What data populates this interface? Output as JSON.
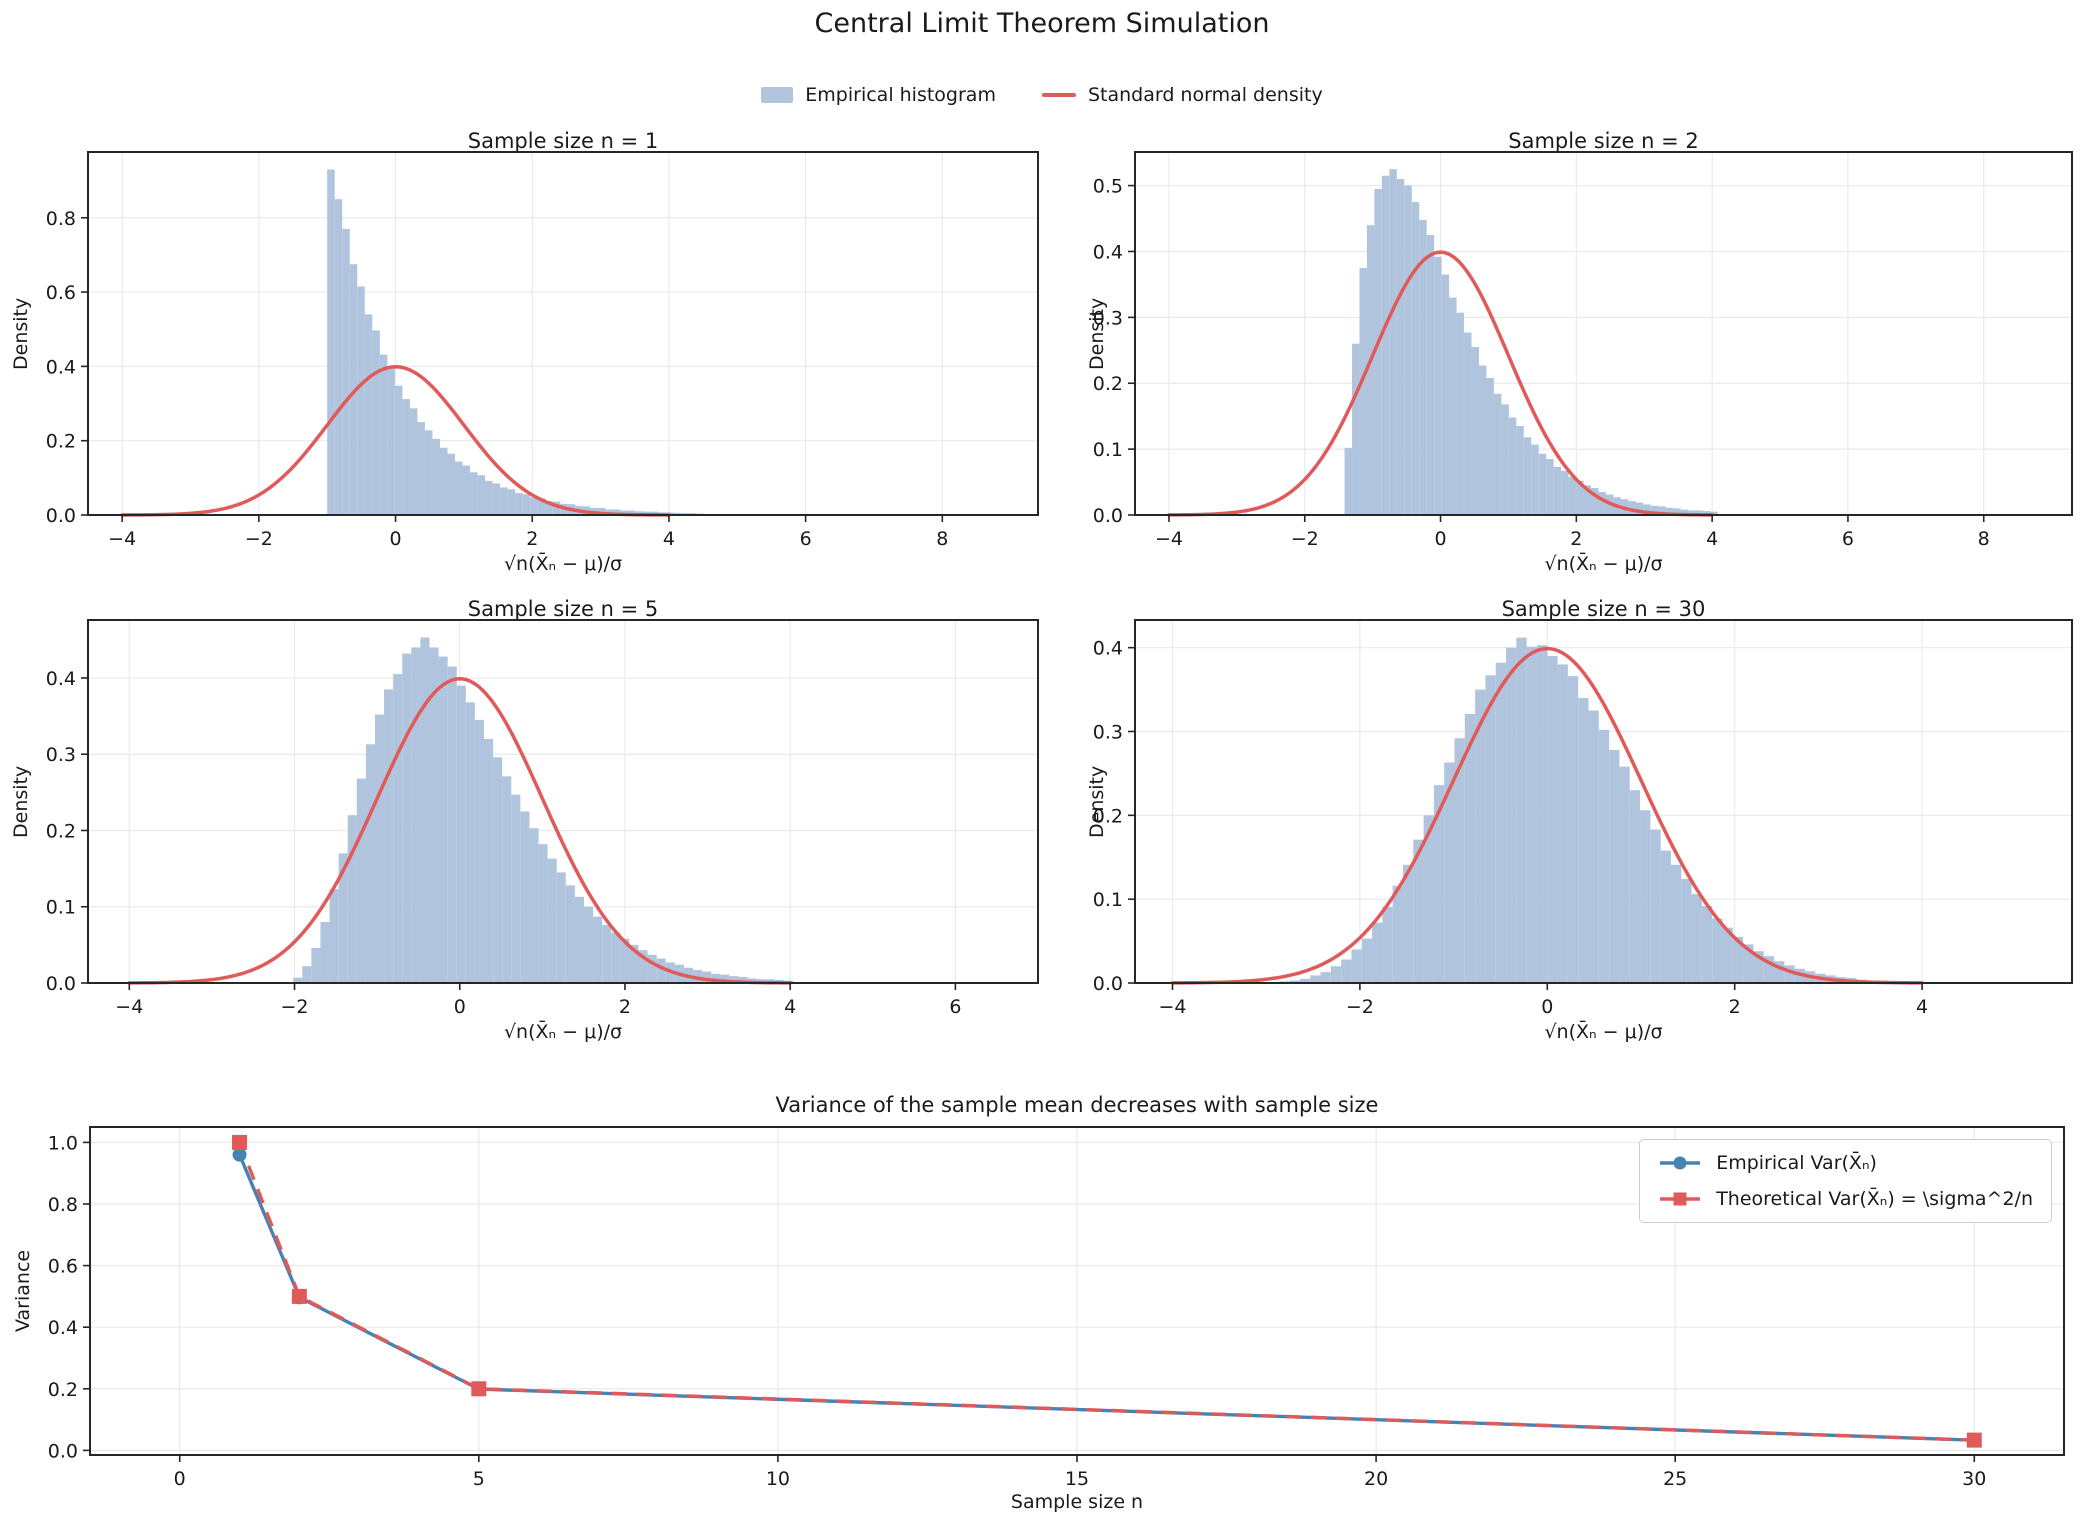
{
  "figure": {
    "title": "Central Limit Theorem Simulation",
    "legend": [
      {
        "label": "Empirical histogram",
        "swatch": "hist-patch"
      },
      {
        "label": "Standard normal density",
        "swatch": "curve-line"
      }
    ]
  },
  "colors": {
    "hist_fill": "#B0C4DE",
    "normal_curve": "#E05A5A",
    "empirical_line": "#4682B4",
    "theoretical_line": "#E05A5A",
    "grid": "#EAEAEA",
    "spine": "#262626",
    "text": "#1A1A1A"
  },
  "chart_data": [
    {
      "type": "histogram",
      "title": "Sample size n = 1",
      "xlabel": "√n(X̄ₙ − μ)/σ",
      "ylabel": "Density",
      "xlim": [
        -4.5,
        9.4
      ],
      "ylim": [
        0,
        0.977
      ],
      "xticks": [
        -4,
        -2,
        0,
        2,
        4,
        6,
        8
      ],
      "yticks": [
        0.0,
        0.2,
        0.4,
        0.6,
        0.8
      ],
      "xtick_decimals": 0,
      "ytick_decimals": 1,
      "hist": {
        "start": -1.0,
        "bin_width": 0.11,
        "heights": [
          0.93,
          0.85,
          0.77,
          0.675,
          0.615,
          0.54,
          0.497,
          0.432,
          0.398,
          0.348,
          0.312,
          0.287,
          0.25,
          0.228,
          0.205,
          0.181,
          0.165,
          0.144,
          0.133,
          0.115,
          0.107,
          0.092,
          0.085,
          0.074,
          0.069,
          0.059,
          0.056,
          0.047,
          0.045,
          0.038,
          0.036,
          0.03,
          0.029,
          0.024,
          0.023,
          0.019,
          0.019,
          0.015,
          0.015,
          0.012,
          0.012,
          0.01,
          0.009,
          0.009,
          0.007,
          0.007,
          0.006,
          0.005,
          0.005,
          0.004
        ]
      },
      "curve": {
        "type": "standard_normal",
        "peak": 0.3989,
        "range": [
          -4,
          4
        ]
      }
    },
    {
      "type": "histogram",
      "title": "Sample size n = 2",
      "xlabel": "√n(X̄ₙ − μ)/σ",
      "ylabel": "Density",
      "xlim": [
        -4.5,
        9.3
      ],
      "ylim": [
        0,
        0.551
      ],
      "xticks": [
        -4,
        -2,
        0,
        2,
        4,
        6,
        8
      ],
      "yticks": [
        0.0,
        0.1,
        0.2,
        0.3,
        0.4,
        0.5
      ],
      "xtick_decimals": 0,
      "ytick_decimals": 1,
      "hist": {
        "start": -1.414,
        "bin_width": 0.11,
        "heights": [
          0.102,
          0.26,
          0.375,
          0.44,
          0.495,
          0.515,
          0.525,
          0.51,
          0.5,
          0.475,
          0.448,
          0.425,
          0.392,
          0.365,
          0.33,
          0.307,
          0.277,
          0.255,
          0.227,
          0.208,
          0.184,
          0.168,
          0.148,
          0.135,
          0.118,
          0.107,
          0.093,
          0.085,
          0.073,
          0.067,
          0.058,
          0.052,
          0.045,
          0.041,
          0.035,
          0.031,
          0.027,
          0.024,
          0.021,
          0.019,
          0.016,
          0.014,
          0.013,
          0.011,
          0.01,
          0.008,
          0.007,
          0.007,
          0.006,
          0.005
        ]
      },
      "curve": {
        "type": "standard_normal",
        "peak": 0.3989,
        "range": [
          -4,
          4
        ]
      }
    },
    {
      "type": "histogram",
      "title": "Sample size n = 5",
      "xlabel": "√n(X̄ₙ − μ)/σ",
      "ylabel": "Density",
      "xlim": [
        -4.5,
        7.0
      ],
      "ylim": [
        0,
        0.476
      ],
      "xticks": [
        -4,
        -2,
        0,
        2,
        4,
        6
      ],
      "yticks": [
        0.0,
        0.1,
        0.2,
        0.3,
        0.4
      ],
      "xtick_decimals": 0,
      "ytick_decimals": 1,
      "hist": {
        "start": -2.236,
        "bin_width": 0.11,
        "heights": [
          0.0,
          0.001,
          0.007,
          0.022,
          0.046,
          0.08,
          0.123,
          0.17,
          0.22,
          0.268,
          0.313,
          0.352,
          0.385,
          0.405,
          0.432,
          0.44,
          0.453,
          0.44,
          0.428,
          0.415,
          0.39,
          0.368,
          0.345,
          0.32,
          0.296,
          0.271,
          0.247,
          0.225,
          0.203,
          0.182,
          0.163,
          0.145,
          0.128,
          0.113,
          0.1,
          0.087,
          0.076,
          0.066,
          0.058,
          0.05,
          0.043,
          0.037,
          0.032,
          0.027,
          0.024,
          0.02,
          0.017,
          0.015,
          0.012,
          0.011,
          0.009,
          0.008,
          0.006,
          0.005,
          0.005,
          0.004,
          0.003
        ]
      },
      "curve": {
        "type": "standard_normal",
        "peak": 0.3989,
        "range": [
          -4,
          4
        ]
      }
    },
    {
      "type": "histogram",
      "title": "Sample size n = 30",
      "xlabel": "√n(X̄ₙ − μ)/σ",
      "ylabel": "Density",
      "xlim": [
        -4.4,
        5.6
      ],
      "ylim": [
        0,
        0.433
      ],
      "xticks": [
        -4,
        -2,
        0,
        2,
        4
      ],
      "yticks": [
        0.0,
        0.1,
        0.2,
        0.3,
        0.4
      ],
      "xtick_decimals": 0,
      "ytick_decimals": 1,
      "hist": {
        "start": -3.3,
        "bin_width": 0.11,
        "heights": [
          0.0,
          0.0003,
          0.0005,
          0.001,
          0.002,
          0.003,
          0.005,
          0.009,
          0.013,
          0.02,
          0.028,
          0.04,
          0.053,
          0.072,
          0.091,
          0.116,
          0.141,
          0.171,
          0.2,
          0.236,
          0.263,
          0.292,
          0.321,
          0.35,
          0.367,
          0.382,
          0.4,
          0.412,
          0.401,
          0.403,
          0.39,
          0.38,
          0.366,
          0.34,
          0.325,
          0.302,
          0.278,
          0.258,
          0.23,
          0.206,
          0.183,
          0.158,
          0.141,
          0.124,
          0.106,
          0.092,
          0.077,
          0.066,
          0.055,
          0.046,
          0.038,
          0.032,
          0.026,
          0.021,
          0.017,
          0.014,
          0.011,
          0.009,
          0.007,
          0.006,
          0.004,
          0.003,
          0.003
        ]
      },
      "curve": {
        "type": "standard_normal",
        "peak": 0.3989,
        "range": [
          -4,
          4
        ]
      }
    },
    {
      "type": "line",
      "title": "Variance of the sample mean decreases with sample size",
      "xlabel": "Sample size n",
      "ylabel": "Variance",
      "xlim": [
        -1.5,
        31.5
      ],
      "ylim": [
        -0.015,
        1.05
      ],
      "xticks": [
        0,
        5,
        10,
        15,
        20,
        25,
        30
      ],
      "yticks": [
        0.0,
        0.2,
        0.4,
        0.6,
        0.8,
        1.0
      ],
      "xtick_decimals": 0,
      "ytick_decimals": 1,
      "series": [
        {
          "name": "Empirical Var(X̄ₙ)",
          "x": [
            1,
            2,
            5,
            30
          ],
          "y": [
            0.96,
            0.497,
            0.199,
            0.0332
          ],
          "style": "solid",
          "marker": "circle",
          "color_key": "empirical_line"
        },
        {
          "name": "Theoretical Var(X̄ₙ) = \\sigma^2/n",
          "x": [
            1,
            2,
            5,
            30
          ],
          "y": [
            1.0,
            0.5,
            0.2,
            0.0333
          ],
          "style": "dashed",
          "marker": "square",
          "color_key": "theoretical_line"
        }
      ],
      "legend_position": "upper right"
    }
  ]
}
